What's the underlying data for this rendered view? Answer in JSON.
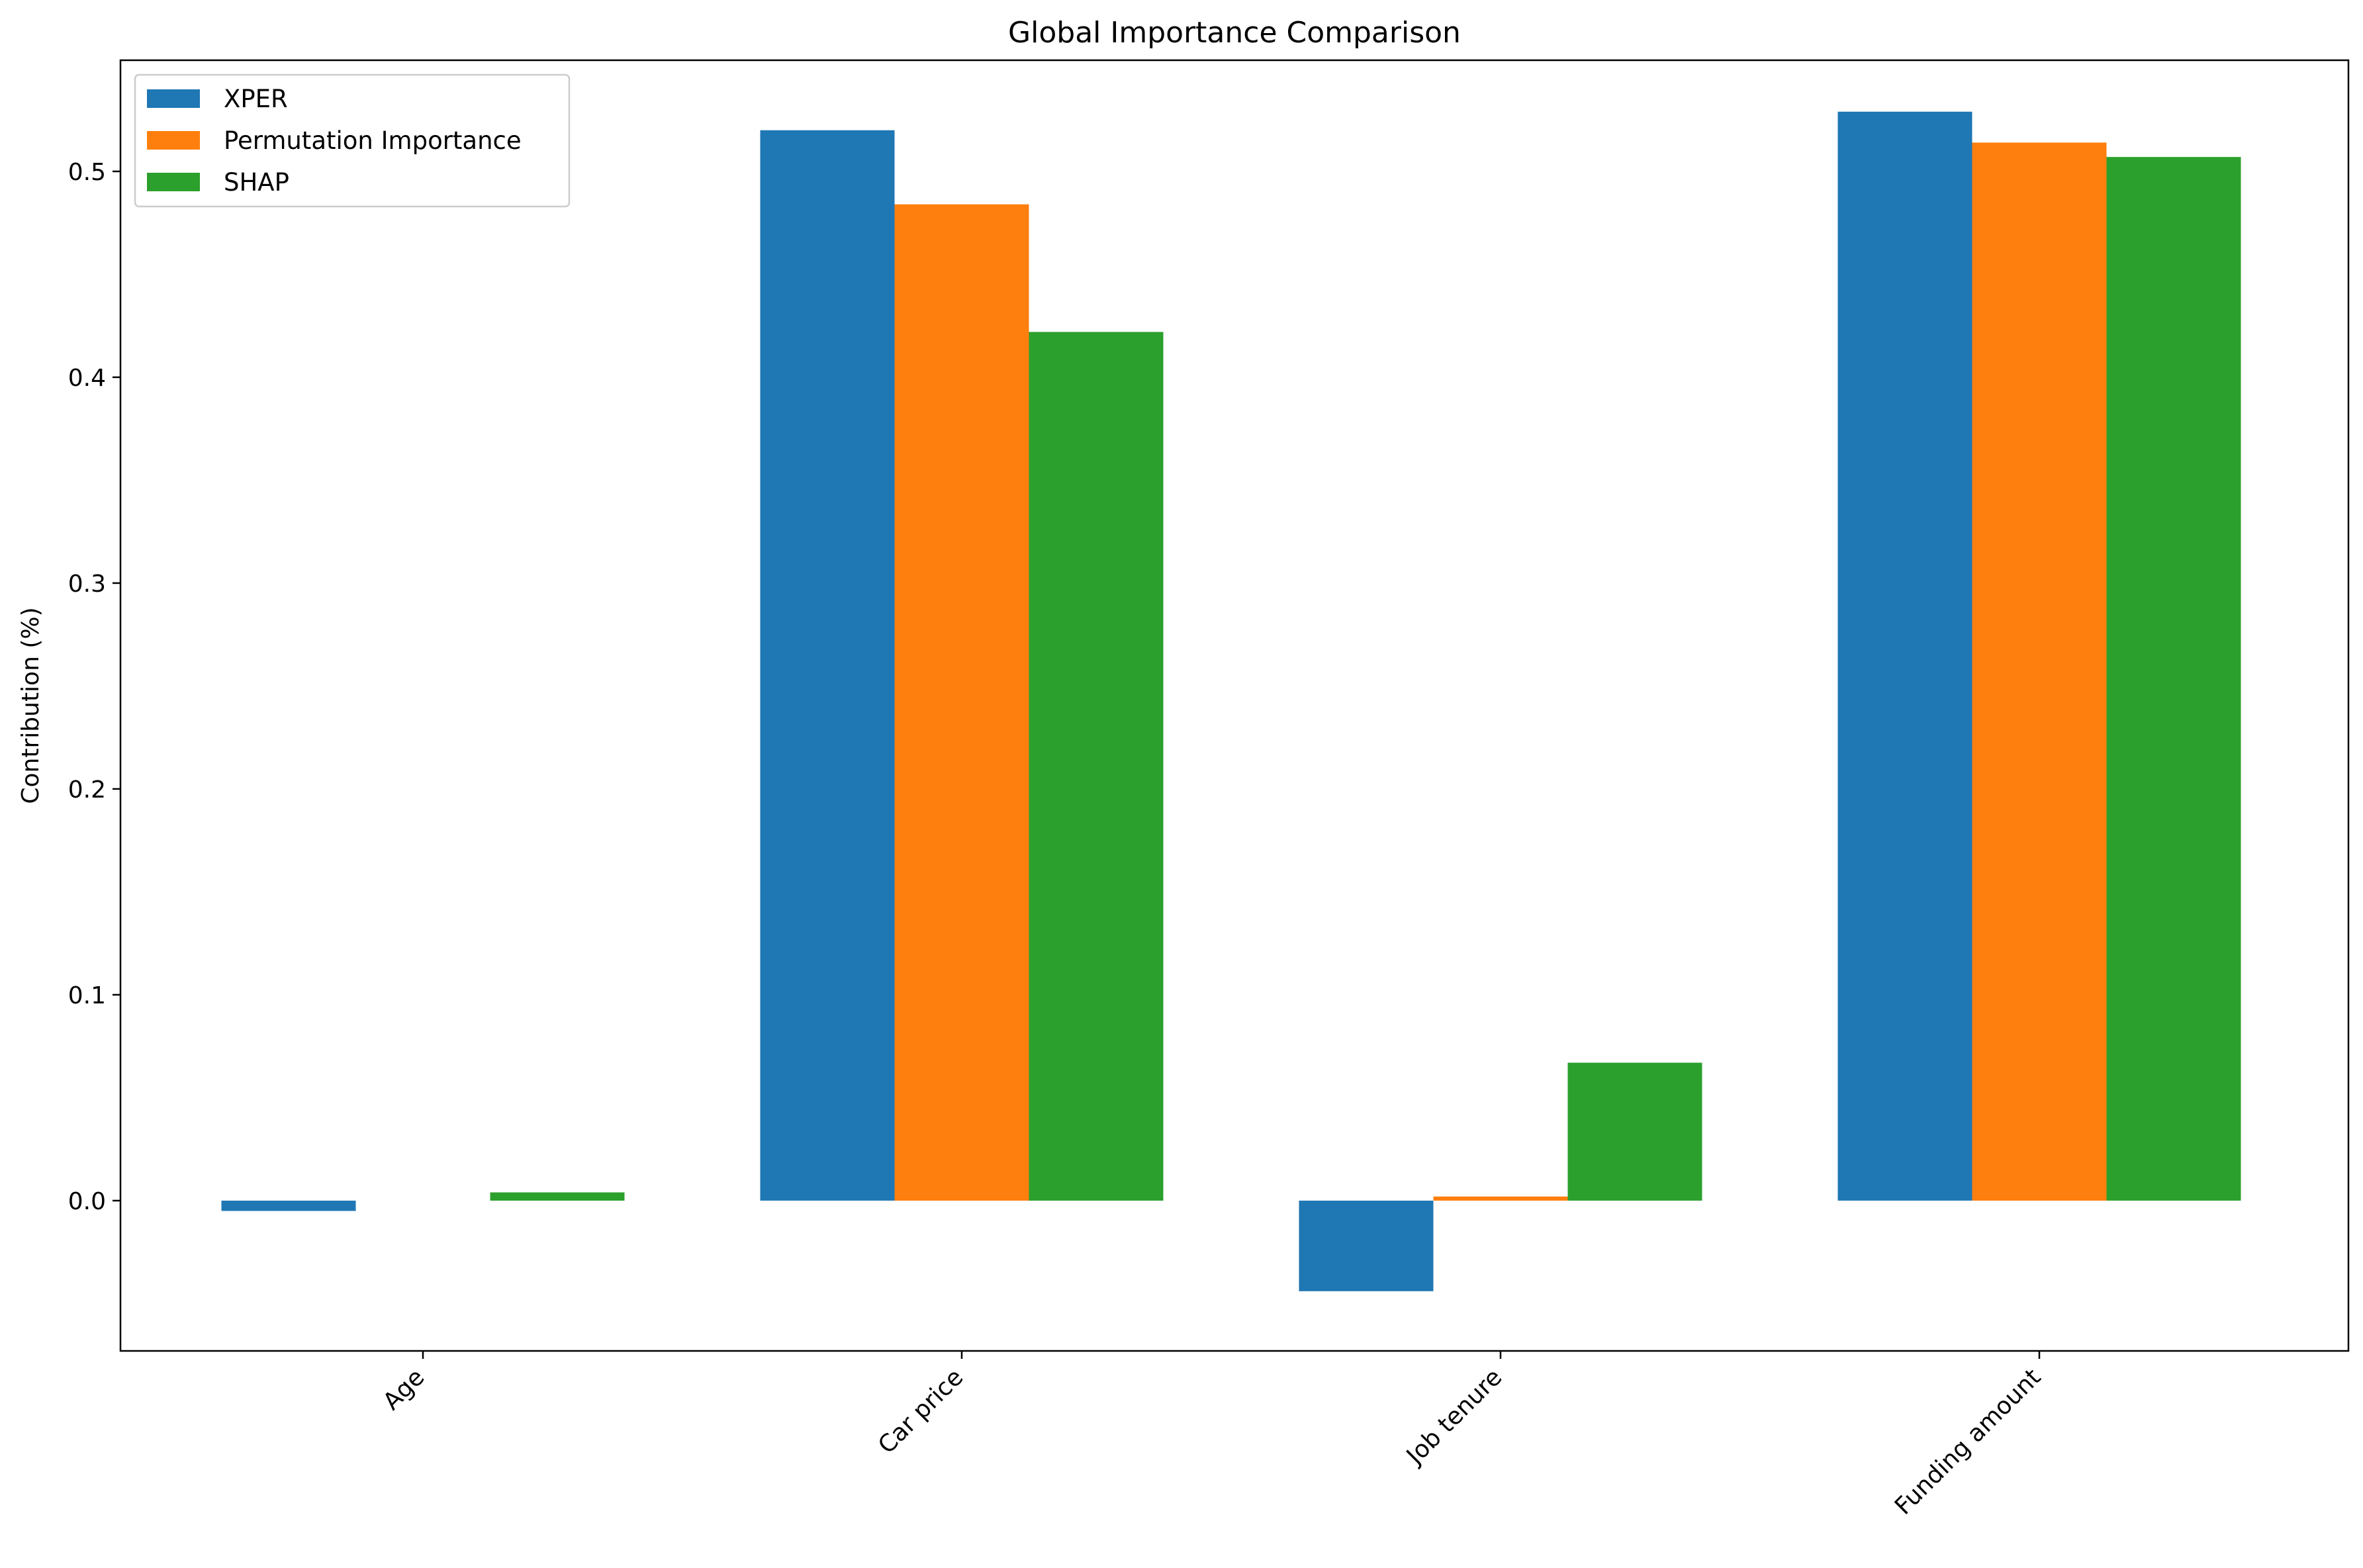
{
  "chart_data": {
    "type": "bar",
    "title": "Global Importance Comparison",
    "xlabel": "",
    "ylabel": "Contribution (%)",
    "categories": [
      "Age",
      "Car price",
      "Job tenure",
      "Funding amount"
    ],
    "series": [
      {
        "name": "XPER",
        "color": "#1f77b4",
        "values": [
          -0.005,
          0.52,
          -0.044,
          0.529
        ]
      },
      {
        "name": "Permutation Importance",
        "color": "#ff7f0e",
        "values": [
          0.0,
          0.484,
          0.002,
          0.514
        ]
      },
      {
        "name": "SHAP",
        "color": "#2ca02c",
        "values": [
          0.004,
          0.422,
          0.067,
          0.507
        ]
      }
    ],
    "ylim": [
      -0.073,
      0.554
    ],
    "yticks": [
      0.0,
      0.1,
      0.2,
      0.3,
      0.4,
      0.5
    ],
    "ytick_labels": [
      "0.0",
      "0.1",
      "0.2",
      "0.3",
      "0.4",
      "0.5"
    ],
    "grid": false,
    "legend_position": "top-left"
  }
}
